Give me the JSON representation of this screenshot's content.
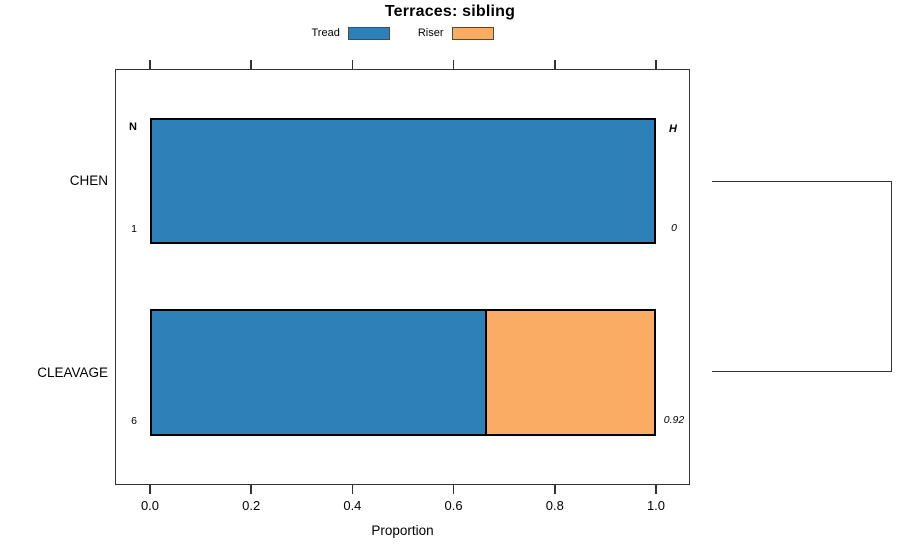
{
  "chart_data": {
    "type": "bar",
    "orientation": "horizontal",
    "stacked": true,
    "title": "Terraces: sibling",
    "xlabel": "Proportion",
    "ylabel": "",
    "xlim": [
      0.0,
      1.0
    ],
    "x_ticks": [
      0.0,
      0.2,
      0.4,
      0.6,
      0.8,
      1.0
    ],
    "x_tick_labels": [
      "0.0",
      "0.2",
      "0.4",
      "0.6",
      "0.8",
      "1.0"
    ],
    "grid": false,
    "legend": {
      "position": "top",
      "entries": [
        {
          "label": "Tread",
          "color": "#2E80B9"
        },
        {
          "label": "Riser",
          "color": "#FBAC63"
        }
      ]
    },
    "categories": [
      "CHEN",
      "CLEAVAGE"
    ],
    "series": [
      {
        "name": "Tread",
        "color": "#2E80B9",
        "values": [
          1.0,
          0.667
        ]
      },
      {
        "name": "Riser",
        "color": "#FBAC63",
        "values": [
          0.0,
          0.333
        ]
      }
    ],
    "row_annotations": {
      "left_header": "N",
      "right_header": "H",
      "left_values": [
        "1",
        "6"
      ],
      "right_values": [
        "0",
        "0.92"
      ]
    },
    "right_bracket": {
      "connects": [
        "CHEN",
        "CLEAVAGE"
      ]
    },
    "colors": {
      "bar_border": "#000000",
      "axis": "#333333"
    }
  }
}
